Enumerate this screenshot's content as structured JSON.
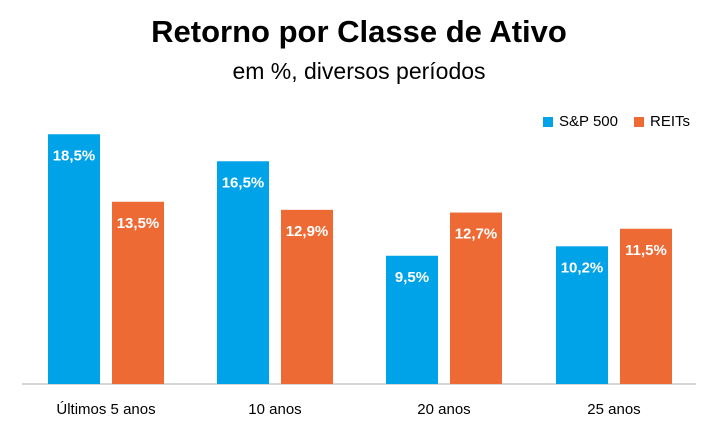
{
  "chart_data": {
    "type": "bar",
    "title": "Retorno por Classe de Ativo",
    "subtitle": "em %, diversos períodos",
    "categories": [
      "Últimos 5 anos",
      "10 anos",
      "20 anos",
      "25 anos"
    ],
    "series": [
      {
        "name": "S&P 500",
        "color": "#00a2e8",
        "values": [
          18.5,
          16.5,
          9.5,
          10.2
        ],
        "labels": [
          "18,5%",
          "16,5%",
          "9,5%",
          "10,2%"
        ]
      },
      {
        "name": "REITs",
        "color": "#ee6a35",
        "values": [
          13.5,
          12.9,
          12.7,
          11.5
        ],
        "labels": [
          "13,5%",
          "12,9%",
          "12,7%",
          "11,5%"
        ]
      }
    ],
    "ylim": [
      0,
      20
    ],
    "grid": false,
    "legend_position": "top-right",
    "axis_color": "#c8c8c8"
  }
}
